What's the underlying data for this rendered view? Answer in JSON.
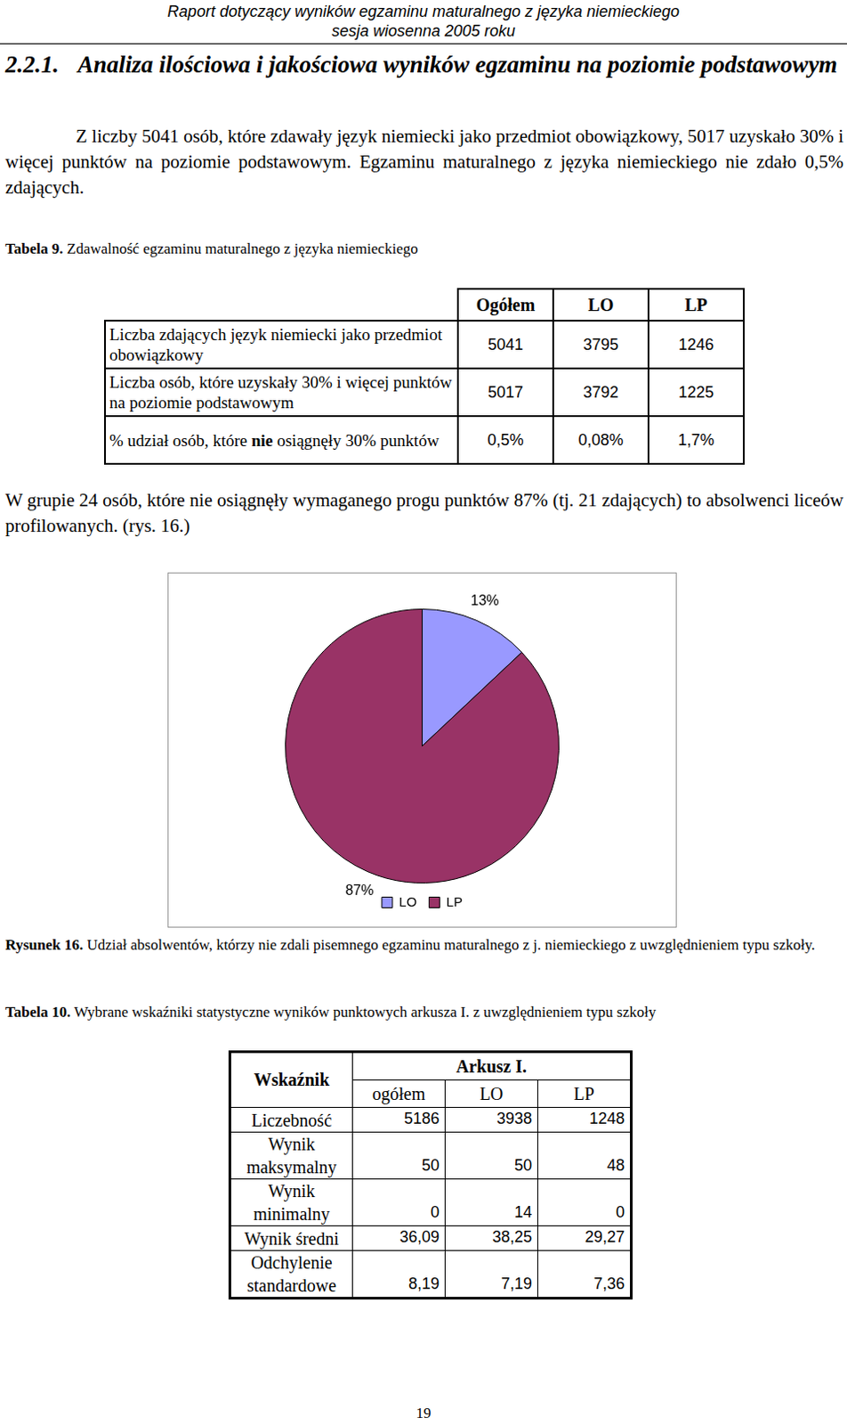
{
  "header": [
    "Raport dotyczący wyników egzaminu maturalnego z języka niemieckiego",
    "sesja wiosenna 2005 roku"
  ],
  "heading": {
    "number": "2.2.1.",
    "title": "Analiza ilościowa i jakościowa wyników egzaminu na poziomie podstawowym"
  },
  "paragraph1": "Z liczby 5041 osób, które zdawały język niemiecki jako przedmiot obowiązkowy, 5017 uzyskało 30% i więcej punktów na poziomie podstawowym. Egzaminu maturalnego z języka niemieckiego nie zdało 0,5% zdających.",
  "table9": {
    "label": "Tabela 9.",
    "caption": "Zdawalność egzaminu maturalnego z języka niemieckiego",
    "columns": [
      "Ogółem",
      "LO",
      "LP"
    ],
    "rows": [
      {
        "label": [
          {
            "text": "Liczba zdających język niemiecki jako przedmiot obowiązkowy"
          }
        ],
        "cells": [
          "5041",
          "3795",
          "1246"
        ]
      },
      {
        "label": [
          {
            "text": "Liczba osób, które uzyskały 30% i więcej punktów na poziomie podstawowym"
          }
        ],
        "cells": [
          "5017",
          "3792",
          "1225"
        ]
      },
      {
        "label": [
          {
            "text": "% udział osób, które "
          },
          {
            "text": "nie",
            "bold": true
          },
          {
            "text": " osiągnęły 30% punktów"
          }
        ],
        "cells": [
          "0,5%",
          "0,08%",
          "1,7%"
        ]
      }
    ]
  },
  "paragraph2": "W grupie 24 osób, które nie osiągnęły wymaganego progu punktów 87% (tj. 21 zdających) to absolwenci liceów profilowanych. (rys. 16.)",
  "chart_data": {
    "type": "pie",
    "categories": [
      "LO",
      "LP"
    ],
    "values": [
      13,
      87
    ],
    "value_labels": [
      "13%",
      "87%"
    ],
    "colors": [
      "#9999ff",
      "#993366"
    ],
    "data_labels": true,
    "legend": "bottom"
  },
  "figure_caption": {
    "label": "Rysunek 16.",
    "text": "Udział absolwentów, którzy nie zdali pisemnego egzaminu maturalnego z j. niemieckiego z uwzględnieniem typu szkoły."
  },
  "table10": {
    "label": "Tabela 10.",
    "caption": "Wybrane wskaźniki statystyczne wyników punktowych arkusza I. z uwzględnieniem typu szkoły",
    "corner": "Wskaźnik",
    "group": "Arkusz I.",
    "columns": [
      "ogółem",
      "LO",
      "LP"
    ],
    "rows": [
      {
        "label": "Liczebność",
        "cells": [
          "5186",
          "3938",
          "1248"
        ]
      },
      {
        "label": "Wynik maksymalny",
        "cells": [
          "50",
          "50",
          "48"
        ]
      },
      {
        "label": "Wynik minimalny",
        "cells": [
          "0",
          "14",
          "0"
        ]
      },
      {
        "label": "Wynik średni",
        "cells": [
          "36,09",
          "38,25",
          "29,27"
        ]
      },
      {
        "label": "Odchylenie standardowe",
        "cells": [
          "8,19",
          "7,19",
          "7,36"
        ]
      }
    ]
  },
  "page_number": "19"
}
